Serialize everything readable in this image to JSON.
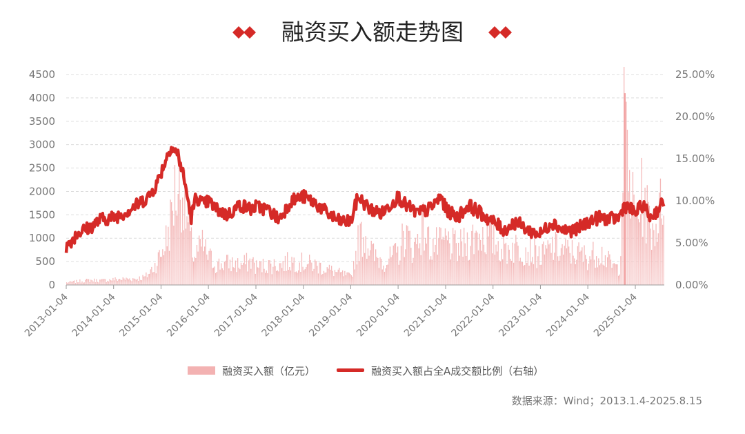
{
  "title": "融资买入额走势图",
  "source_note": "数据来源：Wind；2013.1.4-2025.8.15",
  "colors": {
    "bar": "#f3b2b2",
    "line": "#d52a27",
    "diamond": "#d52a27",
    "grid": "#dddddd",
    "axis_text": "#777777",
    "title_text": "#222222"
  },
  "legend": [
    {
      "label": "融资买入额（亿元）",
      "type": "area",
      "color": "#f3b2b2"
    },
    {
      "label": "融资买入额占全A成交额比例（右轴）",
      "type": "line",
      "color": "#d52a27"
    }
  ],
  "chart_data": {
    "type": "area",
    "x_type": "date",
    "x_start": "2013-01-04",
    "x_end": "2025-08-15",
    "x_ticks": [
      "2013-01-04",
      "2014-01-04",
      "2015-01-04",
      "2016-01-04",
      "2017-01-04",
      "2018-01-04",
      "2019-01-04",
      "2020-01-04",
      "2021-01-04",
      "2022-01-04",
      "2023-01-04",
      "2024-01-04",
      "2025-01-04"
    ],
    "y_left": {
      "min": 0,
      "max": 4500,
      "ticks": [
        0,
        500,
        1000,
        1500,
        2000,
        2500,
        3000,
        3500,
        4000,
        4500
      ]
    },
    "y_right": {
      "min": 0,
      "max": 25,
      "ticks": [
        "0.00%",
        "5.00%",
        "10.00%",
        "15.00%",
        "20.00%",
        "25.00%"
      ]
    },
    "grid": "horizontal dashed",
    "legend_position": "bottom",
    "series": [
      {
        "name": "融资买入额（亿元）",
        "axis": "left",
        "kind": "area",
        "x": [
          "2013-01-04",
          "2013-04-01",
          "2013-07-01",
          "2013-10-01",
          "2014-01-04",
          "2014-04-01",
          "2014-07-01",
          "2014-09-01",
          "2014-10-01",
          "2014-11-15",
          "2015-01-04",
          "2015-02-15",
          "2015-03-15",
          "2015-04-15",
          "2015-05-15",
          "2015-06-10",
          "2015-07-15",
          "2015-08-15",
          "2015-09-15",
          "2015-11-15",
          "2016-01-04",
          "2016-03-01",
          "2016-06-01",
          "2016-09-01",
          "2016-12-01",
          "2017-01-04",
          "2017-04-01",
          "2017-07-01",
          "2017-10-01",
          "2018-01-04",
          "2018-04-01",
          "2018-07-01",
          "2018-10-01",
          "2019-01-04",
          "2019-03-01",
          "2019-04-15",
          "2019-07-01",
          "2019-10-01",
          "2020-01-04",
          "2020-02-20",
          "2020-05-01",
          "2020-07-08",
          "2020-09-01",
          "2020-12-01",
          "2021-01-04",
          "2021-04-01",
          "2021-07-01",
          "2021-09-15",
          "2021-12-01",
          "2022-01-04",
          "2022-04-01",
          "2022-06-15",
          "2022-09-01",
          "2022-12-01",
          "2023-01-04",
          "2023-04-01",
          "2023-07-01",
          "2023-10-01",
          "2024-01-04",
          "2024-04-01",
          "2024-07-01",
          "2024-09-01",
          "2024-10-08",
          "2024-11-01",
          "2024-12-10",
          "2025-01-04",
          "2025-02-20",
          "2025-04-01",
          "2025-05-15",
          "2025-07-01",
          "2025-08-15"
        ],
        "values": [
          60,
          90,
          120,
          110,
          140,
          150,
          160,
          200,
          300,
          500,
          800,
          1200,
          1600,
          2300,
          2400,
          2500,
          1700,
          1100,
          700,
          1000,
          700,
          500,
          550,
          500,
          600,
          450,
          500,
          500,
          600,
          550,
          500,
          400,
          300,
          200,
          1100,
          1300,
          700,
          600,
          800,
          1300,
          900,
          1500,
          1000,
          1000,
          1100,
          900,
          1100,
          1300,
          1200,
          1100,
          900,
          950,
          900,
          800,
          700,
          950,
          850,
          800,
          700,
          850,
          500,
          400,
          4100,
          2800,
          2100,
          1600,
          2200,
          1800,
          1400,
          1700,
          2500
        ]
      },
      {
        "name": "融资买入额占全A成交额比例（右轴）",
        "axis": "right",
        "kind": "line",
        "x": [
          "2013-01-04",
          "2013-04-01",
          "2013-07-01",
          "2013-10-01",
          "2014-01-04",
          "2014-04-01",
          "2014-07-01",
          "2014-10-01",
          "2014-12-01",
          "2015-02-01",
          "2015-03-20",
          "2015-05-15",
          "2015-06-25",
          "2015-08-01",
          "2015-08-25",
          "2015-10-01",
          "2015-12-01",
          "2016-01-04",
          "2016-03-01",
          "2016-06-01",
          "2016-09-01",
          "2016-12-01",
          "2017-01-04",
          "2017-04-01",
          "2017-07-01",
          "2017-10-01",
          "2018-01-04",
          "2018-04-01",
          "2018-07-01",
          "2018-10-01",
          "2019-01-04",
          "2019-03-01",
          "2019-06-01",
          "2019-09-01",
          "2020-01-04",
          "2020-03-01",
          "2020-06-01",
          "2020-09-01",
          "2020-12-01",
          "2021-01-04",
          "2021-04-01",
          "2021-07-01",
          "2021-10-01",
          "2022-01-04",
          "2022-04-01",
          "2022-07-01",
          "2022-10-01",
          "2023-01-04",
          "2023-04-01",
          "2023-07-01",
          "2023-10-01",
          "2024-01-04",
          "2024-04-01",
          "2024-07-01",
          "2024-09-01",
          "2024-10-10",
          "2024-12-01",
          "2025-01-04",
          "2025-03-01",
          "2025-05-01",
          "2025-07-01",
          "2025-08-15"
        ],
        "values": [
          4.5,
          6.2,
          6.8,
          7.8,
          8.0,
          8.6,
          9.5,
          10.5,
          12.0,
          14.5,
          16.5,
          15.5,
          13.0,
          10.0,
          8.0,
          10.5,
          9.5,
          10.0,
          9.0,
          8.3,
          9.5,
          9.0,
          9.3,
          9.0,
          7.8,
          10.0,
          10.5,
          9.8,
          8.6,
          7.6,
          7.5,
          10.5,
          9.0,
          8.5,
          10.5,
          9.5,
          8.5,
          9.0,
          10.5,
          9.0,
          8.0,
          9.5,
          8.5,
          7.5,
          6.5,
          7.5,
          6.5,
          6.0,
          7.5,
          6.5,
          6.5,
          7.5,
          8.0,
          7.8,
          8.0,
          9.5,
          9.0,
          8.5,
          9.5,
          8.0,
          9.0,
          10.0
        ]
      }
    ]
  }
}
